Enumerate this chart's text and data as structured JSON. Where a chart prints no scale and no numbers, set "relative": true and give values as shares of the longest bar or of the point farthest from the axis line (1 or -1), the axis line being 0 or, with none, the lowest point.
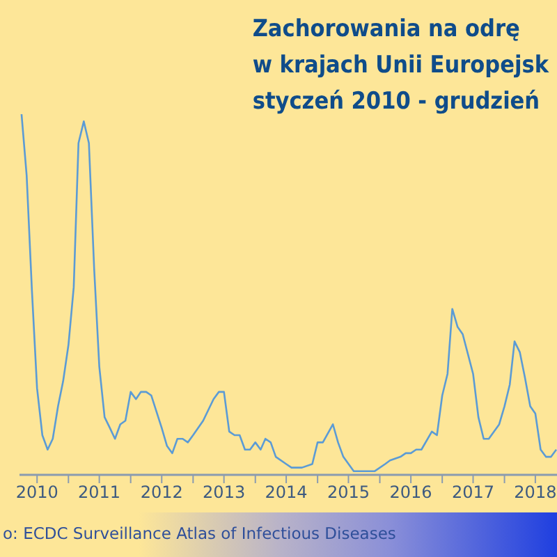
{
  "chart_data": {
    "type": "line",
    "title": "Zachorowania na odrę\nw krajach Unii Europejsk\nstyczeń 2010 - grudzień",
    "annotations": [
      "o: ECDC Surveillance Atlas of Infectious Diseases"
    ],
    "relative": true,
    "marker": "none",
    "line_style": "solid",
    "x": [
      "2010-04",
      "2010-05",
      "2010-06",
      "2010-07",
      "2010-08",
      "2010-09",
      "2010-10",
      "2010-11",
      "2010-12",
      "2011-01",
      "2011-02",
      "2011-03",
      "2011-04",
      "2011-05",
      "2011-06",
      "2011-07",
      "2011-08",
      "2011-09",
      "2011-10",
      "2011-11",
      "2011-12",
      "2012-01",
      "2012-02",
      "2012-03",
      "2012-04",
      "2012-05",
      "2012-07",
      "2012-08",
      "2012-09",
      "2012-10",
      "2012-11",
      "2012-12",
      "2013-01",
      "2013-03",
      "2013-05",
      "2013-06",
      "2013-07",
      "2013-08",
      "2013-09",
      "2013-10",
      "2013-11",
      "2013-12",
      "2014-01",
      "2014-02",
      "2014-03",
      "2014-04",
      "2014-05",
      "2014-07",
      "2014-08",
      "2014-09",
      "2014-10",
      "2014-12",
      "2015-01",
      "2015-02",
      "2015-04",
      "2015-05",
      "2015-06",
      "2015-08",
      "2015-09",
      "2015-12",
      "2016-02",
      "2016-03",
      "2016-05",
      "2016-06",
      "2016-07",
      "2016-08",
      "2016-09",
      "2016-11",
      "2016-12",
      "2017-01",
      "2017-02",
      "2017-03",
      "2017-04",
      "2017-05",
      "2017-07",
      "2017-08",
      "2017-09",
      "2017-10",
      "2017-12",
      "2018-01",
      "2018-02",
      "2018-03",
      "2018-04",
      "2018-05",
      "2018-06",
      "2018-07",
      "2018-08",
      "2018-09",
      "2018-10",
      "2018-11"
    ],
    "series": [
      {
        "color": "#5b9bd5",
        "values": [
          1.0,
          0.83,
          0.51,
          0.24,
          0.11,
          0.07,
          0.1,
          0.19,
          0.26,
          0.36,
          0.52,
          0.92,
          0.98,
          0.92,
          0.57,
          0.3,
          0.16,
          0.13,
          0.1,
          0.14,
          0.15,
          0.23,
          0.21,
          0.23,
          0.23,
          0.22,
          0.13,
          0.08,
          0.06,
          0.1,
          0.1,
          0.09,
          0.11,
          0.15,
          0.21,
          0.23,
          0.23,
          0.12,
          0.11,
          0.11,
          0.07,
          0.07,
          0.09,
          0.07,
          0.1,
          0.09,
          0.05,
          0.03,
          0.02,
          0.02,
          0.02,
          0.03,
          0.09,
          0.09,
          0.14,
          0.09,
          0.05,
          0.01,
          0.01,
          0.01,
          0.03,
          0.04,
          0.05,
          0.06,
          0.06,
          0.07,
          0.07,
          0.12,
          0.11,
          0.22,
          0.28,
          0.46,
          0.41,
          0.39,
          0.28,
          0.16,
          0.1,
          0.1,
          0.14,
          0.19,
          0.25,
          0.37,
          0.34,
          0.27,
          0.19,
          0.17,
          0.07,
          0.05,
          0.05,
          0.07
        ]
      }
    ],
    "xlim": [
      "2010-03-20",
      "2018-11-05"
    ],
    "xticks": [
      {
        "value": "2010-07-01",
        "label": "2010"
      },
      {
        "value": "2011-01-01",
        "label": null
      },
      {
        "value": "2011-07-01",
        "label": "2011"
      },
      {
        "value": "2012-01-01",
        "label": null
      },
      {
        "value": "2012-07-01",
        "label": "2012"
      },
      {
        "value": "2013-01-01",
        "label": null
      },
      {
        "value": "2013-07-01",
        "label": "2013"
      },
      {
        "value": "2014-01-01",
        "label": null
      },
      {
        "value": "2014-07-01",
        "label": "2014"
      },
      {
        "value": "2015-01-01",
        "label": null
      },
      {
        "value": "2015-07-01",
        "label": "2015"
      },
      {
        "value": "2016-01-01",
        "label": null
      },
      {
        "value": "2016-07-01",
        "label": "2016"
      },
      {
        "value": "2017-01-01",
        "label": null
      },
      {
        "value": "2017-07-01",
        "label": "2017"
      },
      {
        "value": "2018-01-01",
        "label": null
      },
      {
        "value": "2018-07-01",
        "label": "2018"
      }
    ]
  }
}
